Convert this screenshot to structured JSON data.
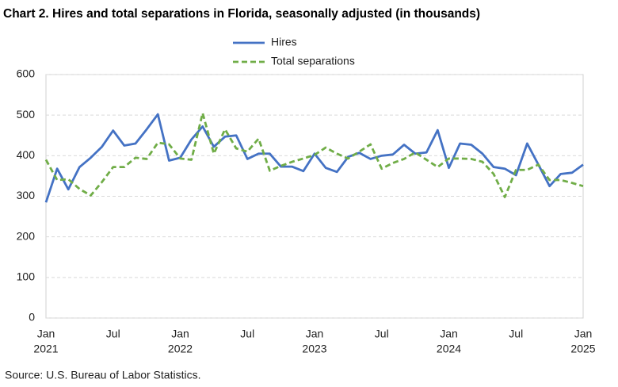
{
  "chart_data": {
    "type": "line",
    "title": "Chart 2. Hires and total separations in Florida, seasonally adjusted (in thousands)",
    "source": "Source: U.S. Bureau of Labor Statistics.",
    "categories": [
      "Jan",
      null,
      null,
      null,
      null,
      null,
      "Jul",
      null,
      null,
      null,
      null,
      null,
      "Jan",
      null,
      null,
      null,
      null,
      null,
      "Jul",
      null,
      null,
      null,
      null,
      null,
      "Jan",
      null,
      null,
      null,
      null,
      null,
      "Jul",
      null,
      null,
      null,
      null,
      null,
      "Jan",
      null,
      null,
      null,
      null,
      null,
      "Jul",
      null,
      null,
      null,
      null,
      null,
      "Jan"
    ],
    "year_labels": [
      "2021",
      null,
      null,
      null,
      null,
      null,
      null,
      null,
      null,
      null,
      null,
      null,
      "2022",
      null,
      null,
      null,
      null,
      null,
      null,
      null,
      null,
      null,
      null,
      null,
      "2023",
      null,
      null,
      null,
      null,
      null,
      null,
      null,
      null,
      null,
      null,
      null,
      "2024",
      null,
      null,
      null,
      null,
      null,
      null,
      null,
      null,
      null,
      null,
      null,
      "2025"
    ],
    "series": [
      {
        "name": "Hires",
        "color": "#4472c4",
        "dash": false,
        "values": [
          285,
          368,
          317,
          372,
          395,
          422,
          462,
          425,
          430,
          465,
          502,
          388,
          395,
          440,
          472,
          422,
          447,
          450,
          392,
          405,
          405,
          373,
          373,
          362,
          405,
          370,
          360,
          397,
          407,
          392,
          400,
          403,
          427,
          405,
          408,
          463,
          370,
          430,
          427,
          405,
          372,
          368,
          352,
          430,
          378,
          325,
          355,
          358,
          378
        ]
      },
      {
        "name": "Total separations",
        "color": "#70ad47",
        "dash": true,
        "values": [
          390,
          340,
          342,
          318,
          302,
          335,
          372,
          372,
          395,
          392,
          432,
          428,
          393,
          390,
          505,
          405,
          465,
          418,
          410,
          442,
          363,
          375,
          385,
          393,
          402,
          420,
          405,
          393,
          410,
          428,
          368,
          382,
          392,
          408,
          390,
          372,
          393,
          393,
          392,
          385,
          355,
          298,
          365,
          365,
          378,
          340,
          340,
          333,
          325
        ]
      }
    ],
    "ylim": [
      0,
      600
    ],
    "yticks": [
      0,
      100,
      200,
      300,
      400,
      500,
      600
    ],
    "grid": true
  }
}
